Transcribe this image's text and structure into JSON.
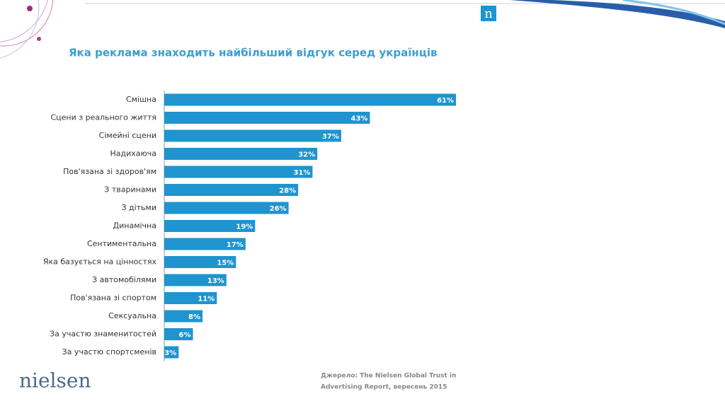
{
  "chart_data": {
    "type": "barh",
    "title": "Яка реклама знаходить найбільший відгук серед українців",
    "categories": [
      "Смішна",
      "Сцени з реального життя",
      "Сімейні сцени",
      "Надихаюча",
      "Пов'язана зі здоров'ям",
      "З тваринами",
      "З дітьми",
      "Динамічна",
      "Сентиментальна",
      "Яка базується на цінностях",
      "З автомобілями",
      "Пов'язана зі спортом",
      "Сексуальна",
      "За участю знаменитостей",
      "За участю спортсменів"
    ],
    "values": [
      61,
      43,
      37,
      32,
      31,
      28,
      26,
      19,
      17,
      15,
      13,
      11,
      8,
      6,
      3
    ],
    "value_labels": [
      "61%",
      "43%",
      "37%",
      "32%",
      "31%",
      "28%",
      "26%",
      "19%",
      "17%",
      "15%",
      "13%",
      "11%",
      "8%",
      "6%",
      "3%"
    ],
    "color": "#1f94cf"
  },
  "source": [
    "Джерело: The Nielsen Global  Trust in",
    "Advertising Report, вересень  2015"
  ],
  "logo": "nielsen",
  "logo_mark": "n"
}
